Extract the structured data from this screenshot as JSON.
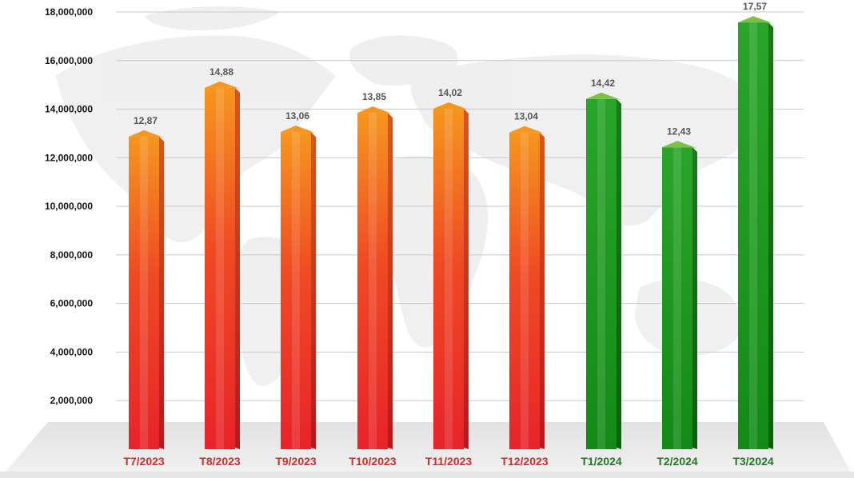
{
  "chart_data": {
    "type": "bar",
    "categories": [
      "T7/2023",
      "T8/2023",
      "T9/2023",
      "T10/2023",
      "T11/2023",
      "T12/2023",
      "T1/2024",
      "T2/2024",
      "T3/2024"
    ],
    "values": [
      12870000,
      14880000,
      13060000,
      13850000,
      14020000,
      13040000,
      14420000,
      12430000,
      17570000
    ],
    "data_labels": [
      "12,87",
      "14,88",
      "13,06",
      "13,85",
      "14,02",
      "13,04",
      "14,42",
      "12,43",
      "17,57"
    ],
    "yticks": [
      "2,000,000",
      "4,000,000",
      "6,000,000",
      "8,000,000",
      "10,000,000",
      "12,000,000",
      "14,000,000",
      "16,000,000",
      "18,000,000"
    ],
    "ytick_values": [
      2000000,
      4000000,
      6000000,
      8000000,
      10000000,
      12000000,
      14000000,
      16000000,
      18000000
    ],
    "ylim": [
      0,
      18000000
    ],
    "grid": true,
    "title": "",
    "xlabel": "",
    "ylabel": "",
    "colors": {
      "year_2023": "#e8232a",
      "year_2023_top": "#f5961e",
      "year_2024": "#1e8c1e",
      "year_2024_top": "#7cc142",
      "label_2023": "#d42a2a",
      "label_2024": "#1f7a1f",
      "value_label": "#555555",
      "tick_label": "#111111"
    }
  }
}
